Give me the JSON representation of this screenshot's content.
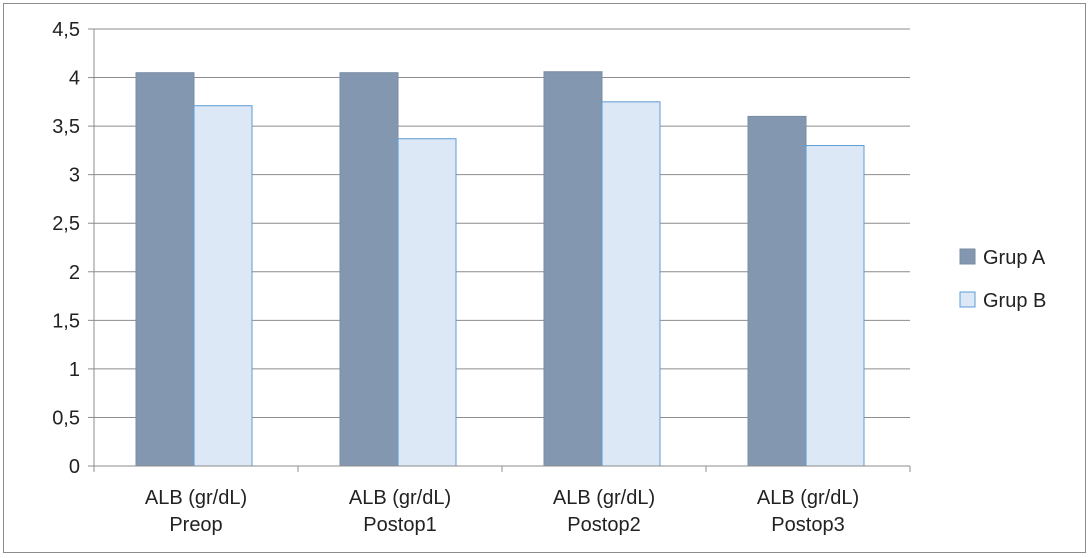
{
  "chart_data": {
    "type": "bar",
    "categories": [
      [
        "ALB (gr/dL)",
        "Preop"
      ],
      [
        "ALB (gr/dL)",
        "Postop1"
      ],
      [
        "ALB (gr/dL)",
        "Postop2"
      ],
      [
        "ALB (gr/dL)",
        "Postop3"
      ]
    ],
    "series": [
      {
        "name": "Grup A",
        "values": [
          4.05,
          4.05,
          4.06,
          3.6
        ],
        "color": "#8397b0",
        "stroke": "#7a8ca3"
      },
      {
        "name": "Grup B",
        "values": [
          3.71,
          3.37,
          3.75,
          3.3
        ],
        "color": "#dce8f6",
        "stroke": "#5b9bd5"
      }
    ],
    "y_ticks": [
      "0",
      "0,5",
      "1",
      "1,5",
      "2",
      "2,5",
      "3",
      "3,5",
      "4",
      "4,5"
    ],
    "ylim": [
      0,
      4.5
    ],
    "title": "",
    "xlabel": "",
    "ylabel": "",
    "grid": true,
    "legend_position": "right"
  }
}
